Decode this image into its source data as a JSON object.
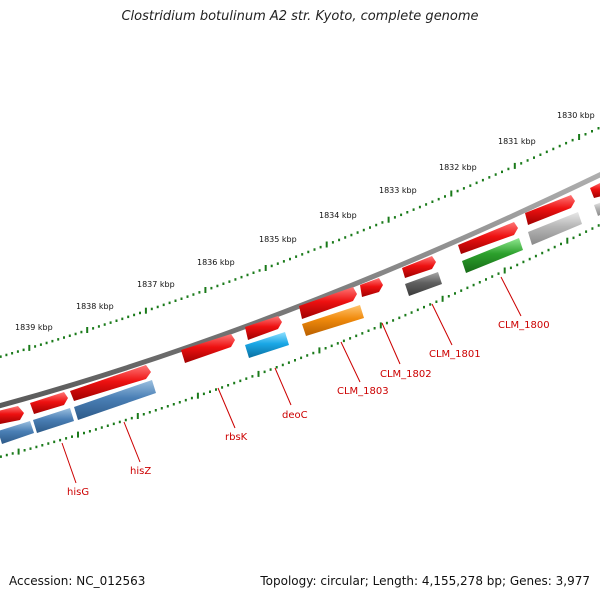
{
  "header": {
    "title": "Clostridium botulinum A2 str. Kyoto, complete genome"
  },
  "footer": {
    "accession": "Accession: NC_012563",
    "stats": "Topology: circular; Length: 4,155,278 bp; Genes: 3,977"
  },
  "scale": {
    "ticks": [
      {
        "label": "1830 kbp"
      },
      {
        "label": "1831 kbp"
      },
      {
        "label": "1832 kbp"
      },
      {
        "label": "1833 kbp"
      },
      {
        "label": "1834 kbp"
      },
      {
        "label": "1835 kbp"
      },
      {
        "label": "1836 kbp"
      },
      {
        "label": "1837 kbp"
      },
      {
        "label": "1838 kbp"
      },
      {
        "label": "1839 kbp"
      }
    ]
  },
  "colors": {
    "forward_gene": "#ee1111",
    "hisG": "#4a7fb5",
    "deoC": "#1aa7e6",
    "CLM_1803": "#f08a0c",
    "CLM_1801": "#606060",
    "CLM_1800": "#2ca02c",
    "grey_gene": "#b5b5b5",
    "backbone": "#808080",
    "ticks": "#1a7a1a",
    "label": "#cc0000"
  },
  "gene_labels": [
    {
      "name": "hisG"
    },
    {
      "name": "hisZ"
    },
    {
      "name": "rbsK"
    },
    {
      "name": "deoC"
    },
    {
      "name": "CLM_1803"
    },
    {
      "name": "CLM_1802"
    },
    {
      "name": "CLM_1801"
    },
    {
      "name": "CLM_1800"
    }
  ]
}
